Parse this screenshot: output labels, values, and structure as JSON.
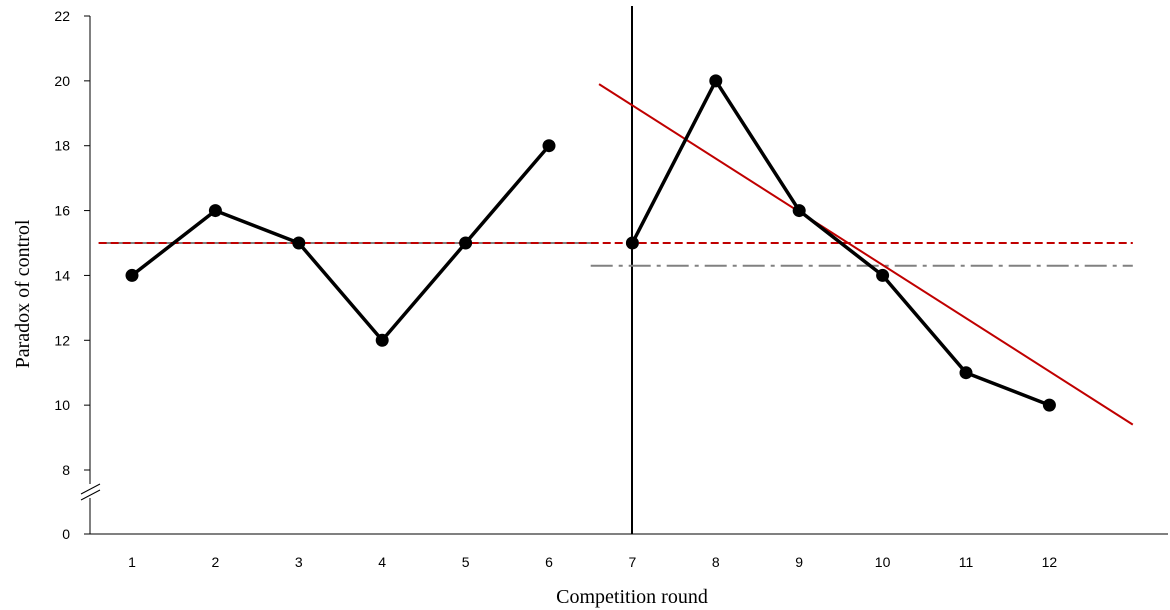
{
  "chart_data": {
    "type": "line",
    "xlabel": "Competition round",
    "ylabel": "Paradox of control",
    "y_ticks": [
      {
        "value": 22,
        "label": "22"
      },
      {
        "value": 20,
        "label": "20"
      },
      {
        "value": 18,
        "label": "18"
      },
      {
        "value": 16,
        "label": "16"
      },
      {
        "value": 14,
        "label": "14"
      },
      {
        "value": 12,
        "label": "12"
      },
      {
        "value": 10,
        "label": "10"
      },
      {
        "value": 8,
        "label": "8"
      },
      {
        "value": 0,
        "label": "0"
      }
    ],
    "ylim": [
      0,
      22
    ],
    "y_axis_break": "between 0 and 8",
    "x_categories": [
      "1",
      "2",
      "3",
      "4",
      "5",
      "6",
      "7",
      "8",
      "9",
      "10",
      "11",
      "12"
    ],
    "phase_divider": "vertical line between round 6 and round 7",
    "series": [
      {
        "x": [
          1,
          2,
          3,
          4,
          5,
          6
        ],
        "y": [
          14,
          16,
          15,
          12,
          15,
          18
        ],
        "color": "#000000",
        "marker": "circle"
      },
      {
        "x": [
          7,
          8,
          9,
          10,
          11,
          12
        ],
        "y": [
          15,
          20,
          16,
          14,
          11,
          10
        ],
        "color": "#000000",
        "marker": "circle"
      }
    ],
    "reference_lines": [
      {
        "style": "solid",
        "color": "#808080",
        "x_range": [
          0.6,
          6.5
        ],
        "y": 15
      },
      {
        "style": "dashed",
        "color": "#c00000",
        "x_range": [
          0.6,
          6.5
        ],
        "y": 15
      },
      {
        "style": "dashed",
        "color": "#c00000",
        "x_range": [
          6.5,
          13
        ],
        "y": 15
      },
      {
        "style": "dash-dot",
        "color": "#808080",
        "x_range": [
          6.5,
          13
        ],
        "y": 14.3
      },
      {
        "style": "solid",
        "color": "#c00000",
        "x_range": [
          6.6,
          13
        ],
        "y_range": [
          19.9,
          9.4
        ]
      }
    ],
    "grid": false,
    "legend": "none"
  }
}
